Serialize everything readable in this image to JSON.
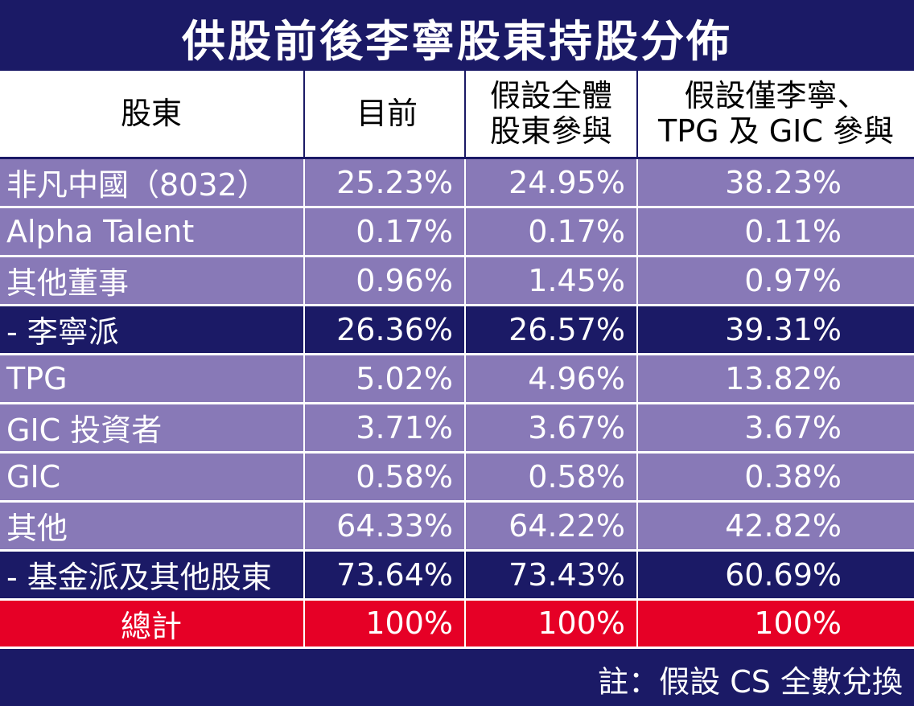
{
  "title": "供股前後李寧股東持股分佈",
  "colors": {
    "navy": "#1b1a66",
    "lavender": "#8879b7",
    "total_red": "#e60026",
    "header_bg": "#ffffff"
  },
  "headers": {
    "name": "股東",
    "current": "目前",
    "all_line1": "假設全體",
    "all_line2": "股東參與",
    "partial_line1": "假設僅李寧、",
    "partial_line2": "TPG 及 GIC 參與"
  },
  "rows": [
    {
      "name": "非凡中國（8032）",
      "current": "25.23%",
      "all": "24.95%",
      "partial": "38.23%"
    },
    {
      "name": "Alpha Talent",
      "current": "0.17%",
      "all": "0.17%",
      "partial": "0.11%"
    },
    {
      "name": "其他董事",
      "current": "0.96%",
      "all": "1.45%",
      "partial": "0.97%"
    },
    {
      "name": "- 李寧派",
      "current": "26.36%",
      "all": "26.57%",
      "partial": "39.31%"
    },
    {
      "name": "TPG",
      "current": "5.02%",
      "all": "4.96%",
      "partial": "13.82%"
    },
    {
      "name": "GIC 投資者",
      "current": "3.71%",
      "all": "3.67%",
      "partial": "3.67%"
    },
    {
      "name": "GIC",
      "current": "0.58%",
      "all": "0.58%",
      "partial": "0.38%"
    },
    {
      "name": "其他",
      "current": "64.33%",
      "all": "64.22%",
      "partial": "42.82%"
    },
    {
      "name": "- 基金派及其他股東",
      "current": "73.64%",
      "all": "73.43%",
      "partial": "60.69%"
    }
  ],
  "total": {
    "name": "總計",
    "current": "100%",
    "all": "100%",
    "partial": "100%"
  },
  "note": "註：假設 CS 全數兌換",
  "chart_data": {
    "type": "table",
    "title": "供股前後李寧股東持股分佈",
    "columns": [
      "股東",
      "目前",
      "假設全體股東參與",
      "假設僅李寧、TPG 及 GIC 參與"
    ],
    "rows": [
      [
        "非凡中國（8032）",
        25.23,
        24.95,
        38.23
      ],
      [
        "Alpha Talent",
        0.17,
        0.17,
        0.11
      ],
      [
        "其他董事",
        0.96,
        1.45,
        0.97
      ],
      [
        "- 李寧派",
        26.36,
        26.57,
        39.31
      ],
      [
        "TPG",
        5.02,
        4.96,
        13.82
      ],
      [
        "GIC 投資者",
        3.71,
        3.67,
        3.67
      ],
      [
        "GIC",
        0.58,
        0.58,
        0.38
      ],
      [
        "其他",
        64.33,
        64.22,
        42.82
      ],
      [
        "- 基金派及其他股東",
        73.64,
        73.43,
        60.69
      ],
      [
        "總計",
        100,
        100,
        100
      ]
    ],
    "unit": "%"
  }
}
